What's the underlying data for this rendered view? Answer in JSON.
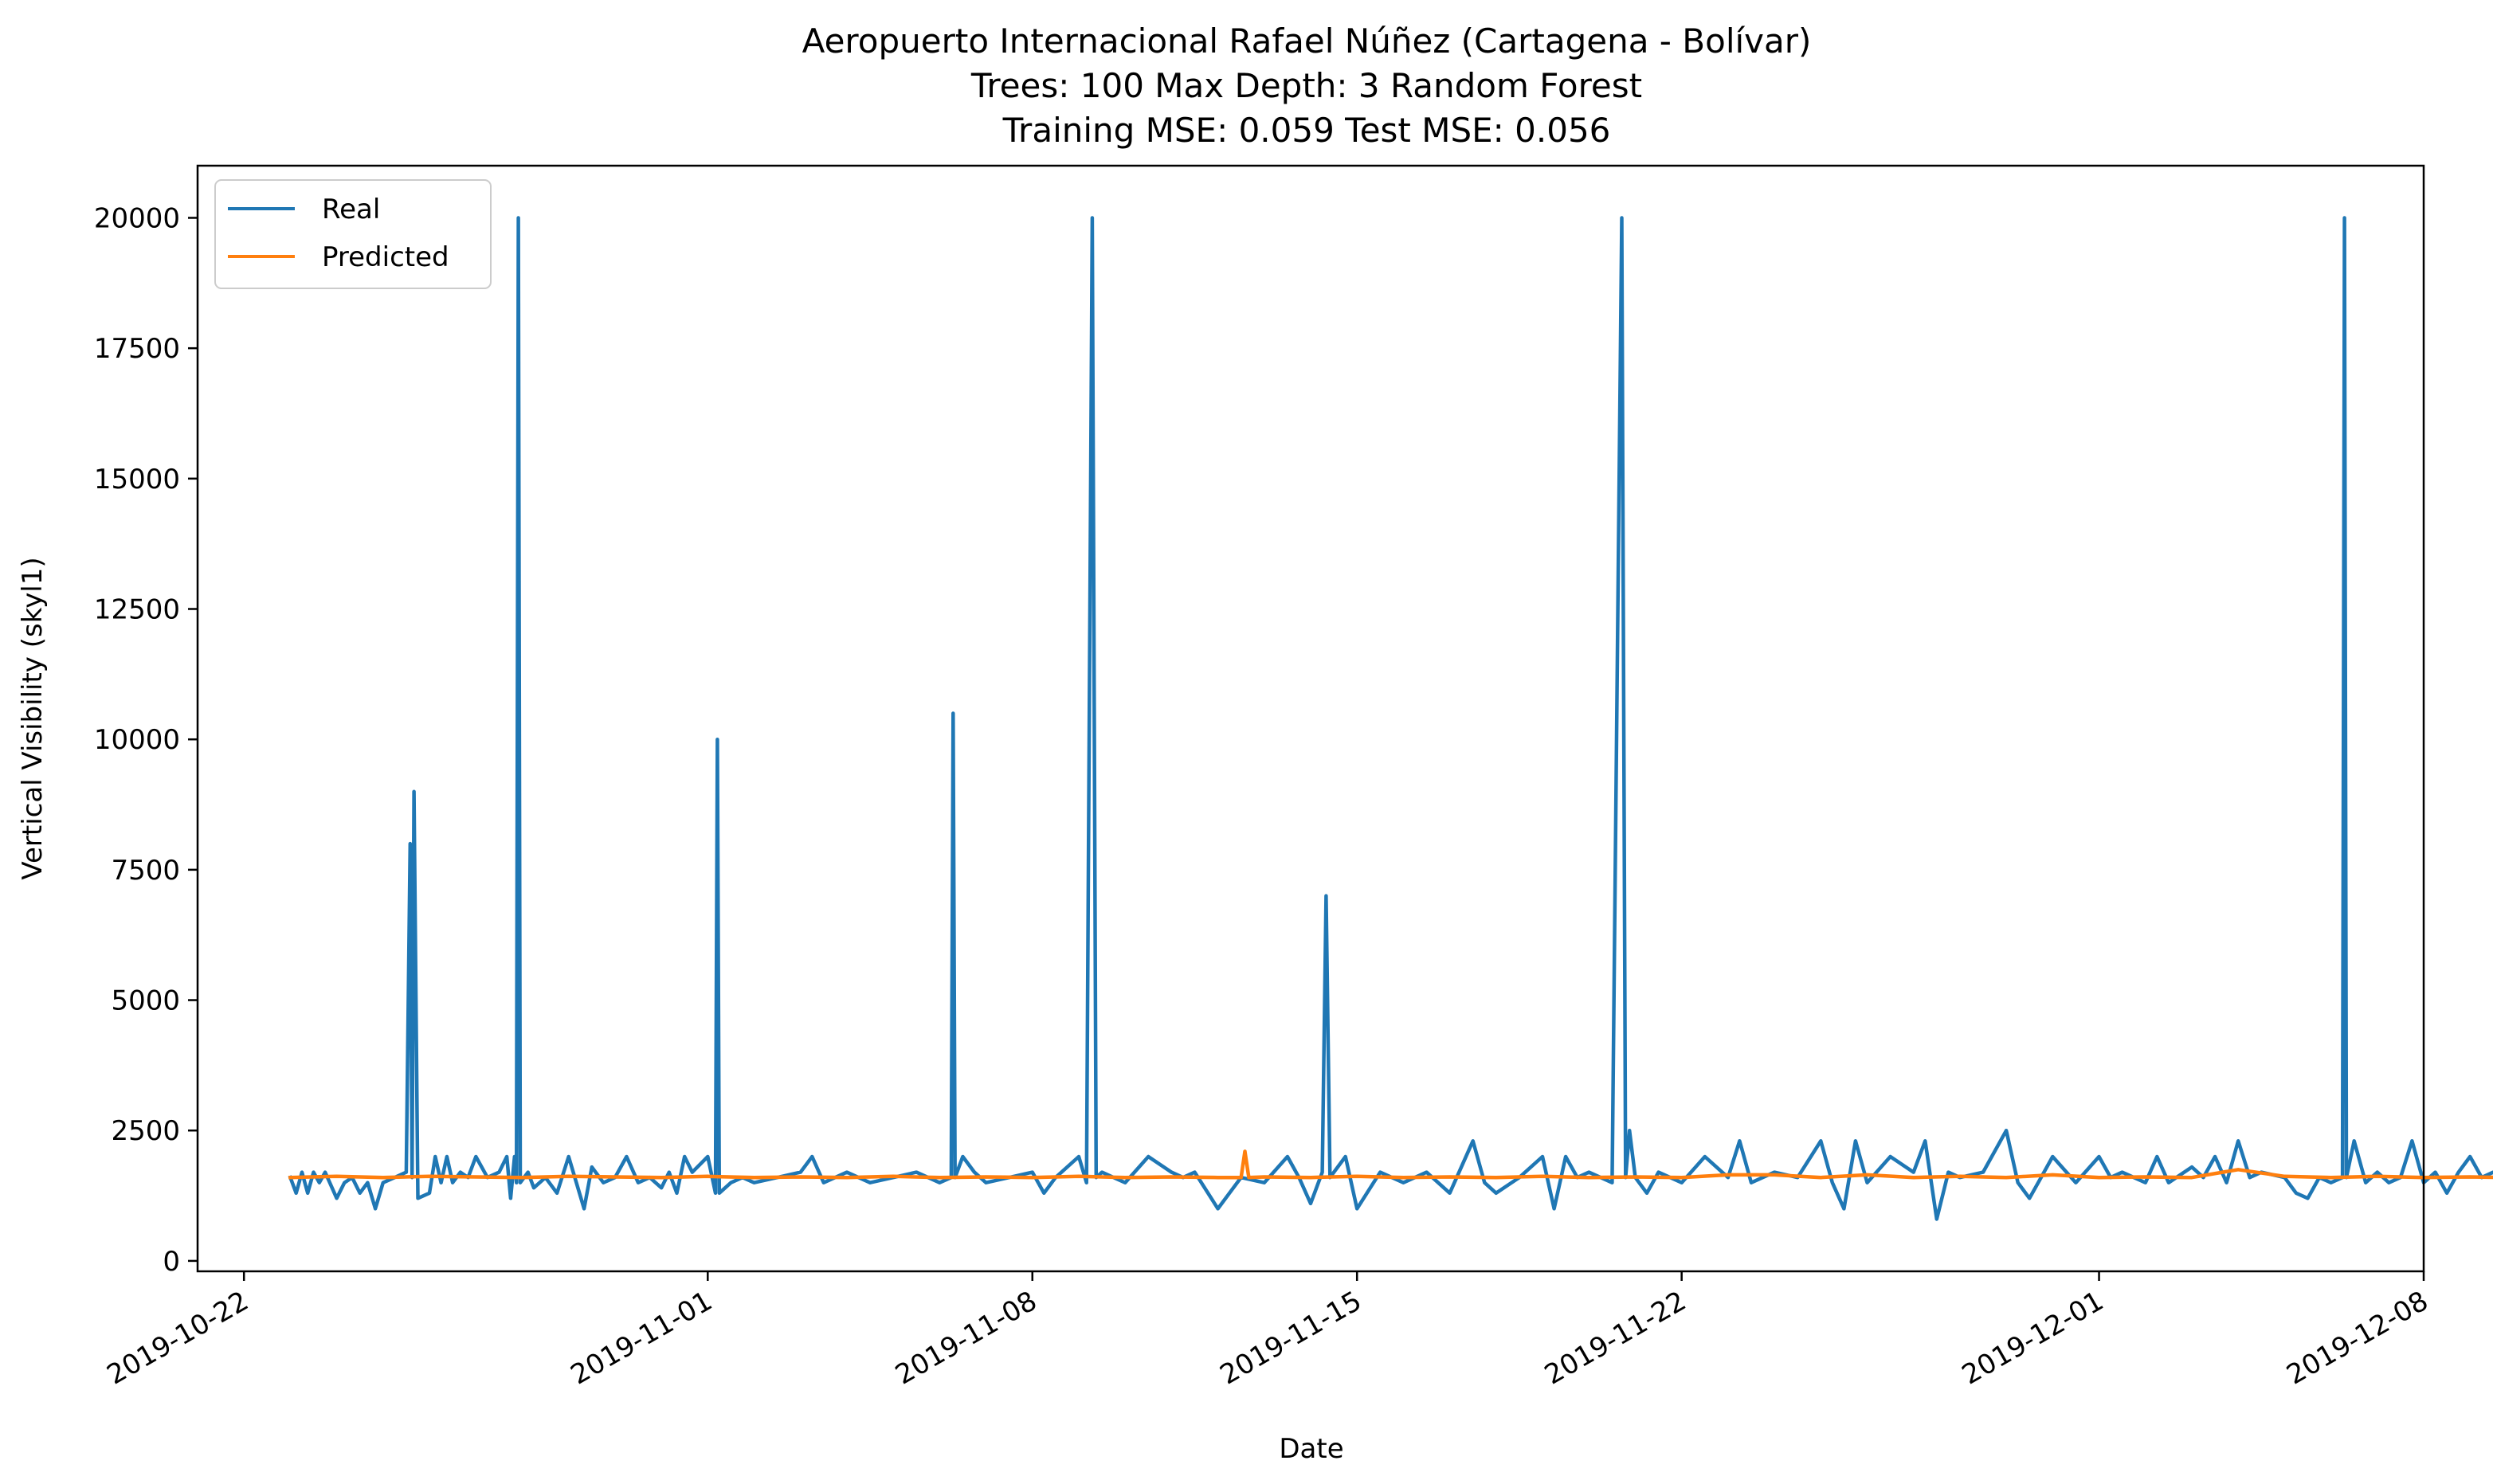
{
  "chart_data": {
    "type": "line",
    "title_lines": [
      "Aeropuerto Internacional Rafael Núñez (Cartagena - Bolívar)",
      "Trees: 100 Max Depth: 3 Random Forest",
      "Training MSE: 0.059 Test MSE: 0.056"
    ],
    "xlabel": "Date",
    "ylabel": "Vertical Visibility (skyl1)",
    "x_ticks": [
      "2019-10-22",
      "2019-11-01",
      "2019-11-08",
      "2019-11-15",
      "2019-11-22",
      "2019-12-01",
      "2019-12-08"
    ],
    "y_ticks": [
      "0",
      "2500",
      "5000",
      "7500",
      "10000",
      "12500",
      "15000",
      "17500",
      "20000"
    ],
    "xlim": [
      "2019-10-21",
      "2019-12-08"
    ],
    "ylim": [
      -200,
      21000
    ],
    "legend": {
      "position": "top-left",
      "entries": [
        "Real",
        "Predicted"
      ]
    },
    "colors": {
      "Real": "#1f77b4",
      "Predicted": "#ff7f0e"
    },
    "grid": false,
    "series": [
      {
        "name": "Real",
        "color": "#1f77b4",
        "points": [
          [
            "2019-10-23T00:00",
            1600
          ],
          [
            "2019-10-23T03:00",
            1300
          ],
          [
            "2019-10-23T06:00",
            1700
          ],
          [
            "2019-10-23T09:00",
            1300
          ],
          [
            "2019-10-23T12:00",
            1700
          ],
          [
            "2019-10-23T15:00",
            1500
          ],
          [
            "2019-10-23T18:00",
            1700
          ],
          [
            "2019-10-24T00:00",
            1200
          ],
          [
            "2019-10-24T04:00",
            1500
          ],
          [
            "2019-10-24T08:00",
            1600
          ],
          [
            "2019-10-24T12:00",
            1300
          ],
          [
            "2019-10-24T16:00",
            1500
          ],
          [
            "2019-10-24T20:00",
            1000
          ],
          [
            "2019-10-25T00:00",
            1500
          ],
          [
            "2019-10-25T06:00",
            1600
          ],
          [
            "2019-10-25T12:00",
            1700
          ],
          [
            "2019-10-25T14:00",
            8000
          ],
          [
            "2019-10-25T15:00",
            1600
          ],
          [
            "2019-10-25T16:00",
            9000
          ],
          [
            "2019-10-25T18:00",
            1200
          ],
          [
            "2019-10-26T00:00",
            1300
          ],
          [
            "2019-10-26T03:00",
            2000
          ],
          [
            "2019-10-26T06:00",
            1500
          ],
          [
            "2019-10-26T09:00",
            2000
          ],
          [
            "2019-10-26T12:00",
            1500
          ],
          [
            "2019-10-26T16:00",
            1700
          ],
          [
            "2019-10-26T20:00",
            1600
          ],
          [
            "2019-10-27T00:00",
            2000
          ],
          [
            "2019-10-27T06:00",
            1600
          ],
          [
            "2019-10-27T12:00",
            1700
          ],
          [
            "2019-10-27T16:00",
            2000
          ],
          [
            "2019-10-27T18:00",
            1200
          ],
          [
            "2019-10-27T20:00",
            2000
          ],
          [
            "2019-10-27T21:00",
            1500
          ],
          [
            "2019-10-27T22:00",
            20000
          ],
          [
            "2019-10-27T23:00",
            1500
          ],
          [
            "2019-10-28T03:00",
            1700
          ],
          [
            "2019-10-28T06:00",
            1400
          ],
          [
            "2019-10-28T12:00",
            1600
          ],
          [
            "2019-10-28T18:00",
            1300
          ],
          [
            "2019-10-29T00:00",
            2000
          ],
          [
            "2019-10-29T04:00",
            1500
          ],
          [
            "2019-10-29T08:00",
            1000
          ],
          [
            "2019-10-29T12:00",
            1800
          ],
          [
            "2019-10-29T18:00",
            1500
          ],
          [
            "2019-10-30T00:00",
            1600
          ],
          [
            "2019-10-30T06:00",
            2000
          ],
          [
            "2019-10-30T12:00",
            1500
          ],
          [
            "2019-10-30T18:00",
            1600
          ],
          [
            "2019-10-31T00:00",
            1400
          ],
          [
            "2019-10-31T04:00",
            1700
          ],
          [
            "2019-10-31T08:00",
            1300
          ],
          [
            "2019-10-31T12:00",
            2000
          ],
          [
            "2019-10-31T16:00",
            1700
          ],
          [
            "2019-11-01T00:00",
            2000
          ],
          [
            "2019-11-01T04:00",
            1300
          ],
          [
            "2019-11-01T05:00",
            10000
          ],
          [
            "2019-11-01T06:00",
            1300
          ],
          [
            "2019-11-01T12:00",
            1500
          ],
          [
            "2019-11-01T18:00",
            1600
          ],
          [
            "2019-11-02T00:00",
            1500
          ],
          [
            "2019-11-02T12:00",
            1600
          ],
          [
            "2019-11-03T00:00",
            1700
          ],
          [
            "2019-11-03T06:00",
            2000
          ],
          [
            "2019-11-03T12:00",
            1500
          ],
          [
            "2019-11-04T00:00",
            1700
          ],
          [
            "2019-11-04T12:00",
            1500
          ],
          [
            "2019-11-05T00:00",
            1600
          ],
          [
            "2019-11-05T12:00",
            1700
          ],
          [
            "2019-11-06T00:00",
            1500
          ],
          [
            "2019-11-06T06:00",
            1600
          ],
          [
            "2019-11-06T07:00",
            10500
          ],
          [
            "2019-11-06T08:00",
            1600
          ],
          [
            "2019-11-06T12:00",
            2000
          ],
          [
            "2019-11-06T18:00",
            1700
          ],
          [
            "2019-11-07T00:00",
            1500
          ],
          [
            "2019-11-07T12:00",
            1600
          ],
          [
            "2019-11-08T00:00",
            1700
          ],
          [
            "2019-11-08T06:00",
            1300
          ],
          [
            "2019-11-08T12:00",
            1600
          ],
          [
            "2019-11-09T00:00",
            2000
          ],
          [
            "2019-11-09T04:00",
            1500
          ],
          [
            "2019-11-09T07:00",
            20000
          ],
          [
            "2019-11-09T09:00",
            1600
          ],
          [
            "2019-11-09T12:00",
            1700
          ],
          [
            "2019-11-10T00:00",
            1500
          ],
          [
            "2019-11-10T12:00",
            2000
          ],
          [
            "2019-11-11T00:00",
            1700
          ],
          [
            "2019-11-11T06:00",
            1600
          ],
          [
            "2019-11-11T12:00",
            1700
          ],
          [
            "2019-11-12T00:00",
            1000
          ],
          [
            "2019-11-12T06:00",
            1300
          ],
          [
            "2019-11-12T12:00",
            1600
          ],
          [
            "2019-11-13T00:00",
            1500
          ],
          [
            "2019-11-13T12:00",
            2000
          ],
          [
            "2019-11-13T18:00",
            1600
          ],
          [
            "2019-11-14T00:00",
            1100
          ],
          [
            "2019-11-14T06:00",
            1700
          ],
          [
            "2019-11-14T08:00",
            7000
          ],
          [
            "2019-11-14T10:00",
            1600
          ],
          [
            "2019-11-14T18:00",
            2000
          ],
          [
            "2019-11-15T00:00",
            1000
          ],
          [
            "2019-11-15T12:00",
            1700
          ],
          [
            "2019-11-16T00:00",
            1500
          ],
          [
            "2019-11-16T12:00",
            1700
          ],
          [
            "2019-11-17T00:00",
            1300
          ],
          [
            "2019-11-17T12:00",
            2300
          ],
          [
            "2019-11-17T18:00",
            1500
          ],
          [
            "2019-11-18T00:00",
            1300
          ],
          [
            "2019-11-18T12:00",
            1600
          ],
          [
            "2019-11-19T00:00",
            2000
          ],
          [
            "2019-11-19T06:00",
            1000
          ],
          [
            "2019-11-19T12:00",
            2000
          ],
          [
            "2019-11-19T18:00",
            1600
          ],
          [
            "2019-11-20T00:00",
            1700
          ],
          [
            "2019-11-20T12:00",
            1500
          ],
          [
            "2019-11-20T17:00",
            20000
          ],
          [
            "2019-11-20T19:00",
            1600
          ],
          [
            "2019-11-20T21:00",
            2500
          ],
          [
            "2019-11-21T00:00",
            1600
          ],
          [
            "2019-11-21T06:00",
            1300
          ],
          [
            "2019-11-21T12:00",
            1700
          ],
          [
            "2019-11-22T00:00",
            1500
          ],
          [
            "2019-11-22T12:00",
            2000
          ],
          [
            "2019-11-23T00:00",
            1600
          ],
          [
            "2019-11-23T06:00",
            2300
          ],
          [
            "2019-11-23T12:00",
            1500
          ],
          [
            "2019-11-24T00:00",
            1700
          ],
          [
            "2019-11-24T12:00",
            1600
          ],
          [
            "2019-11-25T00:00",
            2300
          ],
          [
            "2019-11-25T06:00",
            1500
          ],
          [
            "2019-11-25T12:00",
            1000
          ],
          [
            "2019-11-25T18:00",
            2300
          ],
          [
            "2019-11-26T00:00",
            1500
          ],
          [
            "2019-11-26T12:00",
            2000
          ],
          [
            "2019-11-27T00:00",
            1700
          ],
          [
            "2019-11-27T06:00",
            2300
          ],
          [
            "2019-11-27T12:00",
            800
          ],
          [
            "2019-11-27T18:00",
            1700
          ],
          [
            "2019-11-28T00:00",
            1600
          ],
          [
            "2019-11-28T12:00",
            1700
          ],
          [
            "2019-11-29T00:00",
            2500
          ],
          [
            "2019-11-29T06:00",
            1500
          ],
          [
            "2019-11-29T12:00",
            1200
          ],
          [
            "2019-11-29T18:00",
            1600
          ],
          [
            "2019-11-30T00:00",
            2000
          ],
          [
            "2019-11-30T12:00",
            1500
          ],
          [
            "2019-12-01T00:00",
            2000
          ],
          [
            "2019-12-01T06:00",
            1600
          ],
          [
            "2019-12-01T12:00",
            1700
          ],
          [
            "2019-12-02T00:00",
            1500
          ],
          [
            "2019-12-02T06:00",
            2000
          ],
          [
            "2019-12-02T12:00",
            1500
          ],
          [
            "2019-12-03T00:00",
            1800
          ],
          [
            "2019-12-03T06:00",
            1600
          ],
          [
            "2019-12-03T12:00",
            2000
          ],
          [
            "2019-12-03T18:00",
            1500
          ],
          [
            "2019-12-04T00:00",
            2300
          ],
          [
            "2019-12-04T06:00",
            1600
          ],
          [
            "2019-12-04T12:00",
            1700
          ],
          [
            "2019-12-05T00:00",
            1600
          ],
          [
            "2019-12-05T06:00",
            1300
          ],
          [
            "2019-12-05T12:00",
            1200
          ],
          [
            "2019-12-05T18:00",
            1600
          ],
          [
            "2019-12-06T00:00",
            1500
          ],
          [
            "2019-12-06T06:00",
            1600
          ],
          [
            "2019-12-06T07:00",
            20000
          ],
          [
            "2019-12-06T08:00",
            1600
          ],
          [
            "2019-12-06T12:00",
            2300
          ],
          [
            "2019-12-06T18:00",
            1500
          ],
          [
            "2019-12-07T00:00",
            1700
          ],
          [
            "2019-12-07T06:00",
            1500
          ],
          [
            "2019-12-07T12:00",
            1600
          ],
          [
            "2019-12-07T18:00",
            2300
          ],
          [
            "2019-12-08T00:00",
            1500
          ],
          [
            "2019-12-08T06:00",
            1700
          ],
          [
            "2019-12-08T12:00",
            1300
          ],
          [
            "2019-12-08T18:00",
            1700
          ],
          [
            "2019-12-09T00:00",
            2000
          ],
          [
            "2019-12-09T06:00",
            1600
          ],
          [
            "2019-12-09T12:00",
            1700
          ],
          [
            "2019-12-09T18:00",
            1700
          ]
        ]
      },
      {
        "name": "Predicted",
        "color": "#ff7f0e",
        "points": [
          [
            "2019-10-23T00:00",
            1600
          ],
          [
            "2019-10-24T00:00",
            1620
          ],
          [
            "2019-10-25T00:00",
            1600
          ],
          [
            "2019-10-26T00:00",
            1620
          ],
          [
            "2019-10-27T00:00",
            1610
          ],
          [
            "2019-10-28T00:00",
            1600
          ],
          [
            "2019-10-29T00:00",
            1620
          ],
          [
            "2019-10-30T00:00",
            1610
          ],
          [
            "2019-10-31T00:00",
            1600
          ],
          [
            "2019-11-01T00:00",
            1620
          ],
          [
            "2019-11-02T00:00",
            1600
          ],
          [
            "2019-11-03T00:00",
            1610
          ],
          [
            "2019-11-04T00:00",
            1600
          ],
          [
            "2019-11-05T00:00",
            1620
          ],
          [
            "2019-11-06T00:00",
            1600
          ],
          [
            "2019-11-07T00:00",
            1610
          ],
          [
            "2019-11-08T00:00",
            1600
          ],
          [
            "2019-11-09T00:00",
            1620
          ],
          [
            "2019-11-10T00:00",
            1600
          ],
          [
            "2019-11-11T00:00",
            1610
          ],
          [
            "2019-11-12T00:00",
            1600
          ],
          [
            "2019-11-12T12:00",
            1600
          ],
          [
            "2019-11-12T14:00",
            2100
          ],
          [
            "2019-11-12T16:00",
            1600
          ],
          [
            "2019-11-13T00:00",
            1610
          ],
          [
            "2019-11-14T00:00",
            1600
          ],
          [
            "2019-11-15T00:00",
            1620
          ],
          [
            "2019-11-16T00:00",
            1600
          ],
          [
            "2019-11-17T00:00",
            1610
          ],
          [
            "2019-11-18T00:00",
            1600
          ],
          [
            "2019-11-19T00:00",
            1620
          ],
          [
            "2019-11-20T00:00",
            1600
          ],
          [
            "2019-11-21T00:00",
            1610
          ],
          [
            "2019-11-22T00:00",
            1600
          ],
          [
            "2019-11-23T00:00",
            1650
          ],
          [
            "2019-11-24T00:00",
            1650
          ],
          [
            "2019-11-25T00:00",
            1600
          ],
          [
            "2019-11-26T00:00",
            1650
          ],
          [
            "2019-11-27T00:00",
            1600
          ],
          [
            "2019-11-28T00:00",
            1620
          ],
          [
            "2019-11-29T00:00",
            1600
          ],
          [
            "2019-11-30T00:00",
            1650
          ],
          [
            "2019-12-01T00:00",
            1600
          ],
          [
            "2019-12-02T00:00",
            1610
          ],
          [
            "2019-12-03T00:00",
            1600
          ],
          [
            "2019-12-04T00:00",
            1750
          ],
          [
            "2019-12-05T00:00",
            1620
          ],
          [
            "2019-12-06T00:00",
            1600
          ],
          [
            "2019-12-07T00:00",
            1620
          ],
          [
            "2019-12-08T00:00",
            1600
          ],
          [
            "2019-12-09T00:00",
            1610
          ],
          [
            "2019-12-09T18:00",
            1600
          ]
        ]
      }
    ]
  }
}
